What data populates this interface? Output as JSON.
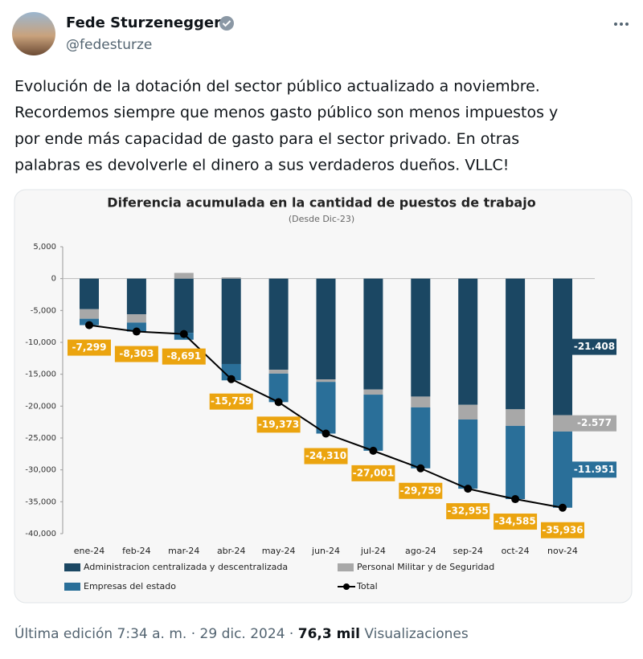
{
  "tweet": {
    "name": "Fede Sturzenegger",
    "handle": "@fedesturze",
    "text": [
      "Evolución de la dotación del sector público actualizado a noviembre.",
      "Recordemos siempre que menos gasto público son menos impuestos y",
      "por ende más capacidad de gasto para el sector privado. En otras",
      "palabras es devolverle el dinero a sus verdaderos dueños. VLLC!"
    ],
    "footer": {
      "edited": "Última edición 7:34 a. m. · 29 dic. 2024 ·",
      "views": "76,3 mil",
      "views_label": "Visualizaciones"
    }
  },
  "chart_data": {
    "type": "bar",
    "stacked": true,
    "title": "Diferencia acumulada en la cantidad de puestos de trabajo",
    "subtitle": "(Desde Dic-23)",
    "categories": [
      "ene-24",
      "feb-24",
      "mar-24",
      "abr-24",
      "may-24",
      "jun-24",
      "jul-24",
      "ago-24",
      "sep-24",
      "oct-24",
      "nov-24"
    ],
    "ylim": [
      -40000,
      5000
    ],
    "yticks": [
      {
        "value": 5000,
        "label": "5,000"
      },
      0,
      {
        "value": -5000,
        "label": "-5,000"
      },
      {
        "value": -10000,
        "label": "-10,000"
      },
      {
        "value": -15000,
        "label": "-15,000"
      },
      {
        "value": -20000,
        "label": "-20,000"
      },
      {
        "value": -25000,
        "label": "-25,000"
      },
      {
        "value": -30000,
        "label": "-30,000"
      },
      {
        "value": -35000,
        "label": "-35,000"
      },
      {
        "value": -40000,
        "label": "-40,000"
      }
    ],
    "series": [
      {
        "name": "Administracion centralizada y descentralizada",
        "color": "#1b4763",
        "values": [
          -4800,
          -5600,
          -8500,
          -13400,
          -14300,
          -15800,
          -17400,
          -18500,
          -19800,
          -20500,
          -21408
        ],
        "value_labels": [
          null,
          null,
          null,
          null,
          null,
          null,
          null,
          null,
          null,
          null,
          "-21.408"
        ]
      },
      {
        "name": "Personal Militar y de Seguridad",
        "color": "#a8a8a8",
        "values": [
          -1500,
          -1300,
          900,
          200,
          -600,
          -400,
          -800,
          -1700,
          -2300,
          -2600,
          -2577
        ],
        "value_labels": [
          null,
          null,
          null,
          null,
          null,
          null,
          null,
          null,
          null,
          null,
          "-2.577"
        ]
      },
      {
        "name": "Empresas del estado",
        "color": "#2a6f99",
        "values": [
          -999,
          -1403,
          -1091,
          -2559,
          -4473,
          -8110,
          -8801,
          -9559,
          -10855,
          -11485,
          -11951
        ],
        "value_labels": [
          null,
          null,
          null,
          null,
          null,
          null,
          null,
          null,
          null,
          null,
          "-11.951"
        ]
      },
      {
        "name": "Total",
        "type": "line",
        "color": "#000000",
        "values": [
          -7299,
          -8303,
          -8691,
          -15759,
          -19373,
          -24310,
          -27001,
          -29759,
          -32955,
          -34585,
          -35936
        ],
        "value_labels": [
          "-7,299",
          "-8,303",
          "-8,691",
          "-15,759",
          "-19,373",
          "-24,310",
          "-27,001",
          "-29,759",
          "-32,955",
          "-34,585",
          "-35,936"
        ],
        "label_color": "#eba40f"
      }
    ]
  }
}
